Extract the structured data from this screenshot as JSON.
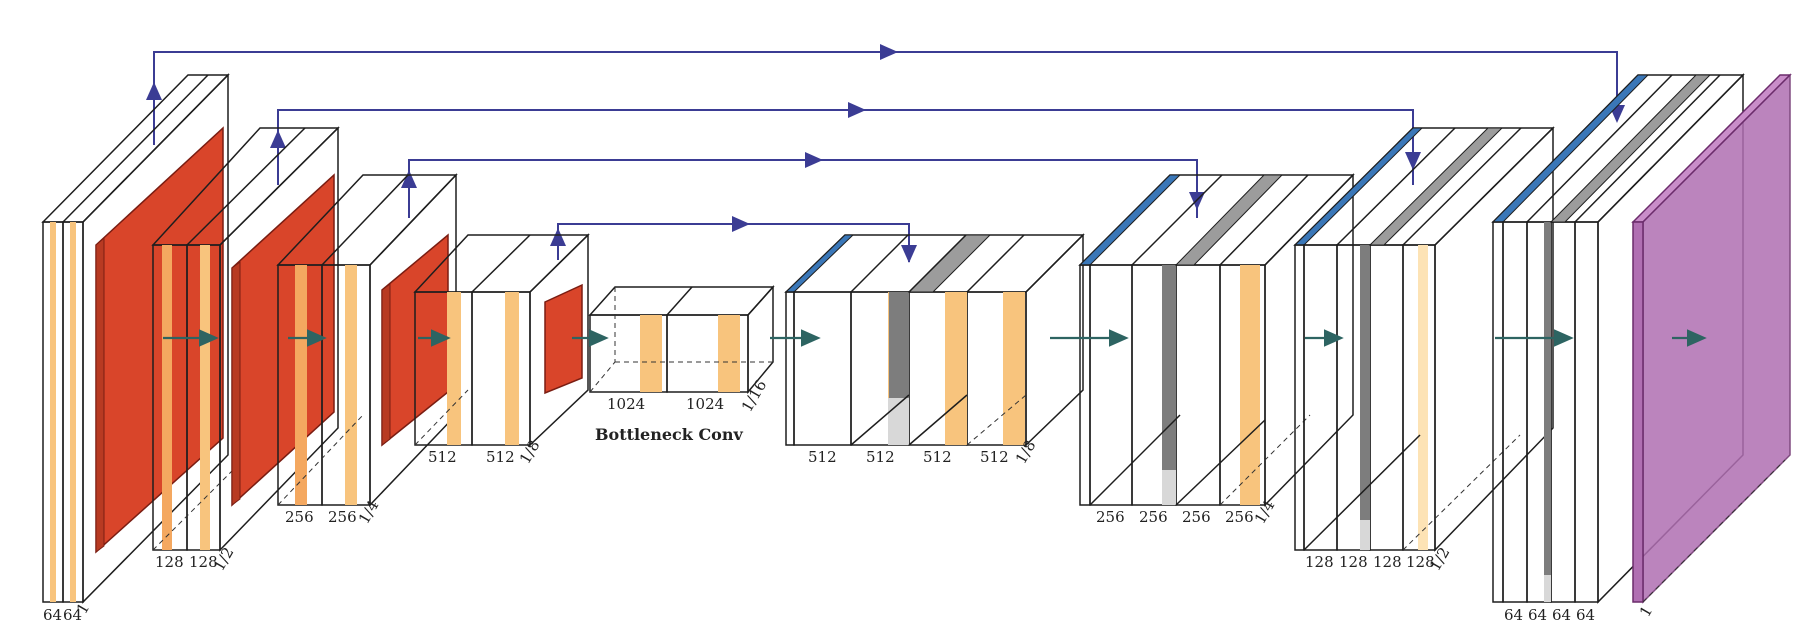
{
  "diagram": {
    "bottleneck_label": "Bottleneck Conv",
    "colors": {
      "light": "#fde3b5",
      "mid": "#f8c47d",
      "deep": "#f4a860",
      "pool": "#d9452a",
      "unpool": "#3a77b8",
      "concat_gray": "#b9b9b9",
      "softmax": "#b06fb2",
      "skip_arrow": "#3b3c94",
      "flow_arrow": "#2d6462"
    },
    "encoder": [
      {
        "dims": [
          "64",
          "64"
        ],
        "scale": "1"
      },
      {
        "dims": [
          "128",
          "128"
        ],
        "scale": "1/2"
      },
      {
        "dims": [
          "256",
          "256"
        ],
        "scale": "1/4"
      },
      {
        "dims": [
          "512",
          "512"
        ],
        "scale": "1/8"
      }
    ],
    "bottleneck": {
      "dims": [
        "1024",
        "1024"
      ],
      "scale": "1/16"
    },
    "decoder": [
      {
        "dims": [
          "512",
          "512",
          "512",
          "512"
        ],
        "scale": "1/8"
      },
      {
        "dims": [
          "256",
          "256",
          "256",
          "256"
        ],
        "scale": "1/4"
      },
      {
        "dims": [
          "128",
          "128",
          "128",
          "128"
        ],
        "scale": "1/2"
      },
      {
        "dims": [
          "64",
          "64",
          "64",
          "64"
        ],
        "scale": ""
      }
    ],
    "output": {
      "scale": "1"
    }
  }
}
